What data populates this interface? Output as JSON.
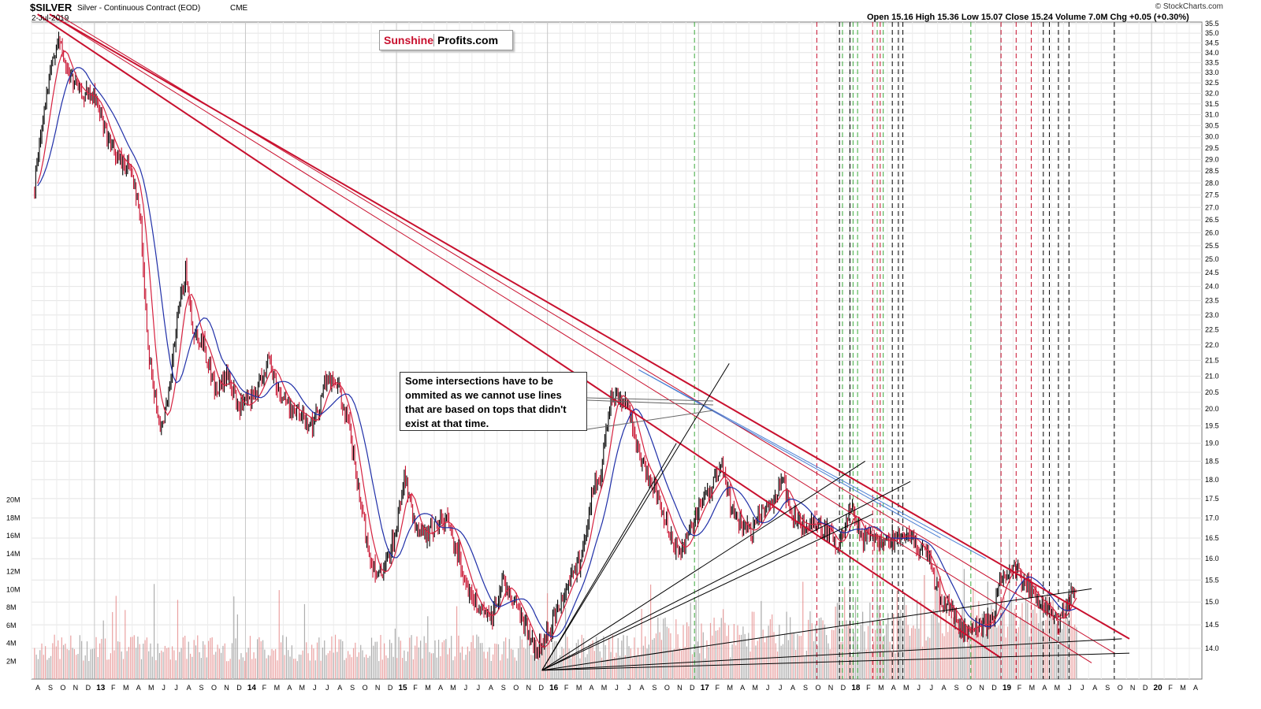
{
  "header": {
    "ticker": "$SILVER",
    "description": "Silver - Continuous Contract (EOD)",
    "exchange": "CME",
    "date": "2-Jul-2019",
    "ohlc": "Open 15.16  High 15.36  Low 15.07  Close 15.24  Volume 7.0M  Chg +0.05 (+0.30%)",
    "watermark": "© StockCharts.com"
  },
  "logo": {
    "part1": "Sunshine",
    "part2": "Profits.com"
  },
  "annotation": "Some intersections have to be ommited as we cannot use lines that are based on tops that didn't exist at that time.",
  "colors": {
    "price_up": "#000000",
    "price_down": "#c8102e",
    "ma_fast": "#d6213f",
    "ma_slow": "#1f2fa8",
    "resistance": "#c8102e",
    "blue_lines": "#4a7fd4",
    "volume_up": "#9a9a9a",
    "volume_down": "#e58a8a",
    "cycle_green": "#3aa83a",
    "cycle_red": "#c8102e",
    "cycle_black": "#000000"
  },
  "chart_data": {
    "type": "line",
    "title": "$SILVER Silver - Continuous Contract (EOD)",
    "price_axis": {
      "scale": "log",
      "ylim": [
        13.5,
        35.5
      ],
      "ticks": [
        "14.0",
        "14.5",
        "15.0",
        "15.5",
        "16.0",
        "16.5",
        "17.0",
        "17.5",
        "18.0",
        "18.5",
        "19.0",
        "19.5",
        "20.0",
        "20.5",
        "21.0",
        "21.5",
        "22.0",
        "22.5",
        "23.0",
        "23.5",
        "24.0",
        "24.5",
        "25.0",
        "25.5",
        "26.0",
        "26.5",
        "27.0",
        "27.5",
        "28.0",
        "28.5",
        "29.0",
        "29.5",
        "30.0",
        "30.5",
        "31.0",
        "31.5",
        "32.0",
        "32.5",
        "33.0",
        "33.5",
        "34.0",
        "34.5",
        "35.0",
        "35.5"
      ]
    },
    "volume_axis": {
      "ticks": [
        "2M",
        "4M",
        "6M",
        "8M",
        "10M",
        "12M",
        "14M",
        "16M",
        "18M",
        "20M"
      ],
      "ylim": [
        0,
        22
      ]
    },
    "x_axis": {
      "range": [
        "2012-08",
        "2020-04"
      ],
      "labels": [
        "A",
        "S",
        "O",
        "N",
        "D",
        "13",
        "F",
        "M",
        "A",
        "M",
        "J",
        "J",
        "A",
        "S",
        "O",
        "N",
        "D",
        "14",
        "F",
        "M",
        "A",
        "M",
        "J",
        "J",
        "A",
        "S",
        "O",
        "N",
        "D",
        "15",
        "F",
        "M",
        "A",
        "M",
        "J",
        "J",
        "A",
        "S",
        "O",
        "N",
        "D",
        "16",
        "F",
        "M",
        "A",
        "M",
        "J",
        "J",
        "A",
        "S",
        "O",
        "N",
        "D",
        "17",
        "F",
        "M",
        "A",
        "M",
        "J",
        "J",
        "A",
        "S",
        "O",
        "N",
        "D",
        "18",
        "F",
        "M",
        "A",
        "M",
        "J",
        "J",
        "A",
        "S",
        "O",
        "N",
        "D",
        "19",
        "F",
        "M",
        "A",
        "M",
        "J",
        "J",
        "A",
        "S",
        "O",
        "N",
        "D",
        "20",
        "F",
        "M",
        "A"
      ]
    },
    "series": [
      {
        "name": "Price",
        "x": [
          2012.6,
          2012.65,
          2012.75,
          2012.82,
          2012.9,
          2013.0,
          2013.08,
          2013.15,
          2013.25,
          2013.3,
          2013.35,
          2013.42,
          2013.48,
          2013.55,
          2013.6,
          2013.65,
          2013.72,
          2013.8,
          2013.88,
          2013.95,
          2014.05,
          2014.15,
          2014.22,
          2014.3,
          2014.38,
          2014.45,
          2014.52,
          2014.6,
          2014.68,
          2014.75,
          2014.82,
          2014.9,
          2015.0,
          2015.05,
          2015.1,
          2015.18,
          2015.25,
          2015.32,
          2015.4,
          2015.48,
          2015.55,
          2015.62,
          2015.7,
          2015.78,
          2015.85,
          2015.92,
          2015.97,
          2016.05,
          2016.15,
          2016.22,
          2016.3,
          2016.35,
          2016.42,
          2016.5,
          2016.55,
          2016.6,
          2016.68,
          2016.75,
          2016.82,
          2016.88,
          2016.95,
          2017.0,
          2017.08,
          2017.15,
          2017.22,
          2017.28,
          2017.35,
          2017.42,
          2017.5,
          2017.55,
          2017.62,
          2017.7,
          2017.78,
          2017.85,
          2017.92,
          2018.0,
          2018.08,
          2018.15,
          2018.22,
          2018.3,
          2018.38,
          2018.45,
          2018.52,
          2018.6,
          2018.68,
          2018.75,
          2018.82,
          2018.9,
          2018.95,
          2019.0,
          2019.08,
          2019.15,
          2019.22,
          2019.3,
          2019.38,
          2019.45,
          2019.5
        ],
        "values": [
          27.8,
          30.5,
          34.8,
          33.0,
          32.0,
          31.8,
          30.0,
          29.0,
          28.5,
          26.5,
          22.0,
          19.5,
          20.0,
          23.0,
          24.5,
          22.5,
          22.0,
          20.5,
          21.0,
          20.0,
          20.3,
          21.5,
          20.5,
          20.0,
          19.8,
          19.5,
          20.8,
          20.8,
          19.5,
          17.5,
          16.0,
          15.5,
          16.8,
          18.2,
          17.0,
          16.5,
          16.8,
          17.0,
          16.2,
          15.2,
          14.8,
          14.6,
          15.5,
          15.0,
          14.5,
          13.9,
          14.1,
          14.7,
          15.6,
          16.0,
          17.8,
          18.0,
          20.5,
          20.3,
          19.8,
          18.6,
          18.0,
          17.3,
          16.5,
          16.1,
          16.8,
          17.3,
          17.8,
          18.3,
          17.2,
          16.8,
          16.6,
          17.2,
          17.5,
          18.0,
          17.0,
          16.8,
          16.9,
          16.7,
          16.2,
          17.3,
          16.5,
          16.6,
          16.4,
          16.5,
          16.6,
          16.3,
          16.0,
          15.0,
          14.8,
          14.3,
          14.5,
          14.5,
          14.7,
          15.5,
          15.8,
          15.5,
          15.1,
          14.9,
          14.5,
          15.1,
          15.24
        ]
      },
      {
        "name": "MA fast",
        "smoothing": "fast"
      },
      {
        "name": "MA slow",
        "smoothing": "slow"
      }
    ],
    "trend_lines": {
      "resistance": [
        {
          "x1": 2012.7,
          "y1": 36.0,
          "x2": 2019.85,
          "y2": 14.2
        },
        {
          "x1": 2012.75,
          "y1": 36.0,
          "x2": 2019.75,
          "y2": 13.9
        },
        {
          "x1": 2012.7,
          "y1": 36.0,
          "x2": 2019.6,
          "y2": 13.7
        },
        {
          "x1": 2012.62,
          "y1": 36.0,
          "x2": 2019.0,
          "y2": 13.8
        }
      ],
      "blue": [
        {
          "x1": 2016.6,
          "y1": 21.2,
          "x2": 2018.9,
          "y2": 16.0
        },
        {
          "x1": 2016.6,
          "y1": 21.2,
          "x2": 2018.6,
          "y2": 16.5
        }
      ],
      "fan_origin": {
        "x": 2015.96,
        "y": 13.55
      },
      "fan_targets": [
        {
          "x": 2017.2,
          "y": 21.4
        },
        {
          "x": 2016.85,
          "y": 19.0
        },
        {
          "x": 2018.1,
          "y": 18.5
        },
        {
          "x": 2018.4,
          "y": 17.95
        },
        {
          "x": 2018.15,
          "y": 17.1
        },
        {
          "x": 2019.6,
          "y": 15.3
        },
        {
          "x": 2019.8,
          "y": 14.2
        },
        {
          "x": 2019.85,
          "y": 13.9
        }
      ]
    },
    "cycle_lines": {
      "green": [
        2016.97,
        2017.95,
        2018.02,
        2018.05,
        2018.18,
        2018.22,
        2018.8
      ],
      "red": [
        2017.78,
        2018.15,
        2018.2,
        2019.0,
        2019.1,
        2019.2
      ],
      "black": [
        2017.93,
        2018.0,
        2018.28,
        2018.32,
        2018.35,
        2019.28,
        2019.32,
        2019.38,
        2019.45,
        2019.75
      ]
    }
  }
}
